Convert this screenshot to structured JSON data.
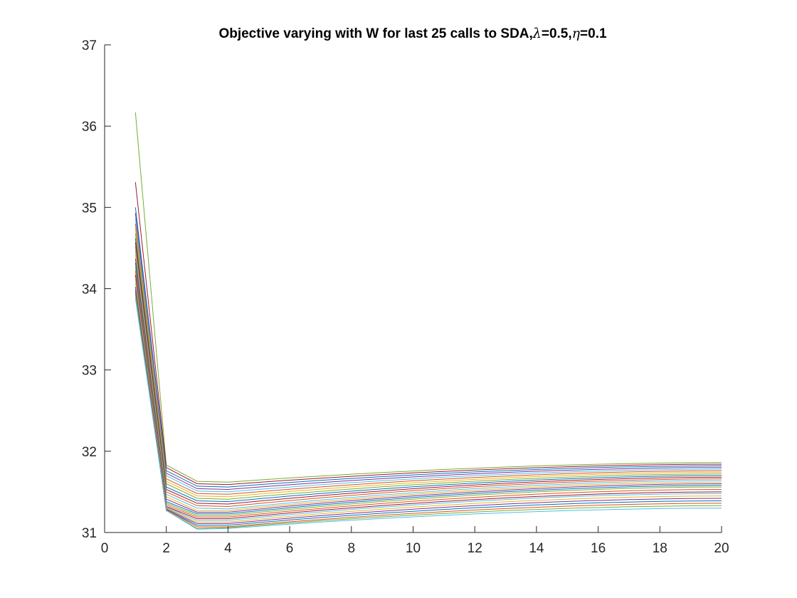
{
  "chart_data": {
    "type": "line",
    "title_text": "Objective varying with W for last 25 calls to SDA,",
    "title_lambda_symbol": "λ",
    "title_lambda_value": "=0.5,",
    "title_eta_symbol": "η",
    "title_eta_value": "=0.1",
    "xlabel": "",
    "ylabel": "",
    "xlim": [
      0,
      20
    ],
    "ylim": [
      31,
      37
    ],
    "xticks": [
      "0",
      "2",
      "4",
      "6",
      "8",
      "10",
      "12",
      "14",
      "16",
      "18",
      "20"
    ],
    "yticks": [
      "31",
      "32",
      "33",
      "34",
      "35",
      "36",
      "37"
    ],
    "grid": false,
    "x": [
      1,
      2,
      3,
      4,
      5,
      6,
      7,
      8,
      9,
      10,
      11,
      12,
      13,
      14,
      15,
      16,
      17,
      18,
      19,
      20
    ],
    "series_summary": {
      "count": 25,
      "start_values_x1": [
        36.17,
        35.31,
        35.0,
        34.93,
        34.87,
        34.8,
        34.74,
        34.68,
        34.62,
        34.57,
        34.52,
        34.47,
        34.42,
        34.37,
        34.32,
        34.27,
        34.22,
        34.17,
        34.12,
        34.07,
        34.02,
        33.98,
        33.95,
        33.92,
        33.88
      ],
      "values_x2": [
        31.83,
        31.8,
        31.76,
        31.73,
        31.7,
        31.66,
        31.63,
        31.6,
        31.56,
        31.53,
        31.5,
        31.47,
        31.44,
        31.41,
        31.38,
        31.36,
        31.34,
        31.32,
        31.31,
        31.3,
        31.29,
        31.28,
        31.28,
        31.27,
        31.27
      ],
      "values_x3": [
        31.63,
        31.6,
        31.57,
        31.54,
        31.51,
        31.48,
        31.45,
        31.42,
        31.39,
        31.36,
        31.33,
        31.3,
        31.27,
        31.25,
        31.23,
        31.21,
        31.19,
        31.17,
        31.15,
        31.13,
        31.11,
        31.09,
        31.07,
        31.05,
        31.04
      ],
      "values_x4": [
        31.62,
        31.59,
        31.56,
        31.53,
        31.5,
        31.47,
        31.44,
        31.41,
        31.38,
        31.35,
        31.32,
        31.29,
        31.27,
        31.25,
        31.23,
        31.21,
        31.19,
        31.17,
        31.15,
        31.13,
        31.11,
        31.09,
        31.07,
        31.06,
        31.05
      ],
      "values_x20": [
        31.86,
        31.84,
        31.82,
        31.8,
        31.78,
        31.76,
        31.74,
        31.72,
        31.7,
        31.68,
        31.66,
        31.64,
        31.62,
        31.6,
        31.58,
        31.56,
        31.53,
        31.5,
        31.48,
        31.45,
        31.42,
        31.39,
        31.36,
        31.33,
        31.3
      ]
    },
    "series_colors": [
      "#77AC30",
      "#A2142F",
      "#0072BD",
      "#7E2F8E",
      "#4DBEEE",
      "#D95319",
      "#EDB120",
      "#77AC30",
      "#0072BD",
      "#A2142F",
      "#D95319",
      "#4DBEEE",
      "#EDB120",
      "#7E2F8E",
      "#0072BD",
      "#77AC30",
      "#D95319",
      "#A2142F",
      "#4DBEEE",
      "#EDB120",
      "#7E2F8E",
      "#0072BD",
      "#D95319",
      "#77AC30",
      "#4DBEEE"
    ]
  }
}
